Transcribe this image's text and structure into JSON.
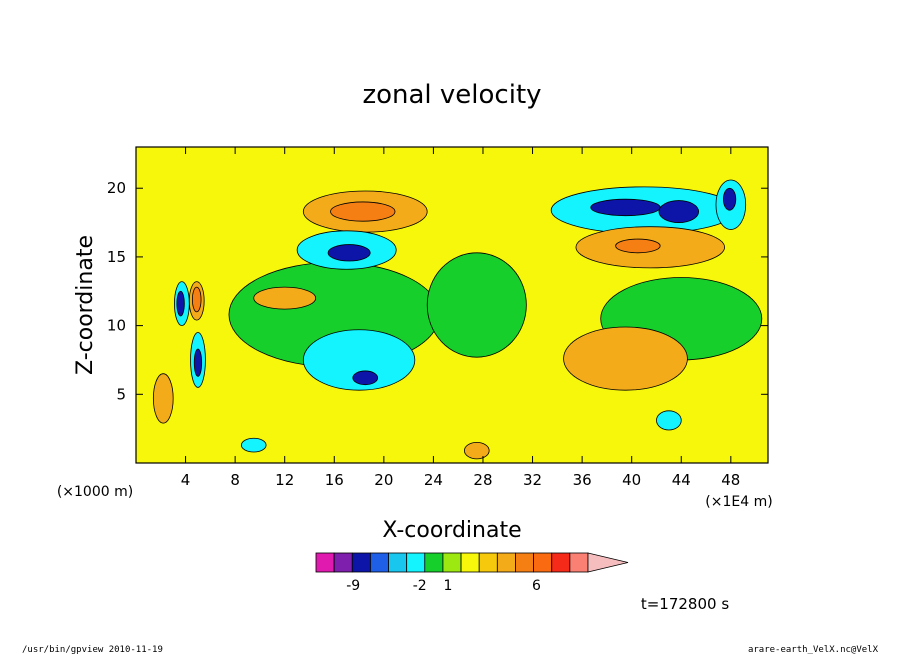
{
  "chart_data": {
    "type": "heatmap",
    "title": "zonal velocity",
    "xlabel": "X-coordinate",
    "ylabel": "Z-coordinate",
    "x_unit_left": "(×1000 m)",
    "x_unit_right": "(×1E4 m)",
    "x_range": [
      0,
      51
    ],
    "y_range": [
      0,
      23
    ],
    "x_ticks": [
      "4",
      "8",
      "12",
      "16",
      "20",
      "24",
      "28",
      "32",
      "36",
      "40",
      "44",
      "48"
    ],
    "x_tick_values": [
      4,
      8,
      12,
      16,
      20,
      24,
      28,
      32,
      36,
      40,
      44,
      48
    ],
    "y_ticks": [
      "5",
      "10",
      "15",
      "20"
    ],
    "y_tick_values": [
      5,
      10,
      15,
      20
    ],
    "colorbar": {
      "colors": [
        "#e11aaf",
        "#7e1fae",
        "#0c15a8",
        "#1f5ee6",
        "#18c6ee",
        "#13f4ff",
        "#16cf2b",
        "#9de811",
        "#f7f70c",
        "#f6c90c",
        "#f3ab1a",
        "#f57f13",
        "#fa6a10",
        "#f52a18",
        "#f98073",
        "#f6bdbf"
      ],
      "labels": [
        "-9",
        "-2",
        "1",
        "6"
      ],
      "label_slots": [
        1,
        5,
        7,
        10
      ]
    },
    "contour_regions": [
      {
        "fill": "#16cf2b",
        "cx": 16,
        "cy": 10.8,
        "rx": 8.5,
        "ry": 3.8
      },
      {
        "fill": "#16cf2b",
        "cx": 27.5,
        "cy": 11.5,
        "rx": 4,
        "ry": 3.8
      },
      {
        "fill": "#16cf2b",
        "cx": 44,
        "cy": 10.5,
        "rx": 6.5,
        "ry": 3
      },
      {
        "fill": "#13f4ff",
        "cx": 18,
        "cy": 7.5,
        "rx": 4.5,
        "ry": 2.2
      },
      {
        "fill": "#0c15a8",
        "cx": 18.5,
        "cy": 6.2,
        "rx": 1,
        "ry": 0.5
      },
      {
        "fill": "#f3ab1a",
        "cx": 39.5,
        "cy": 7.6,
        "rx": 5,
        "ry": 2.3
      },
      {
        "fill": "#f3ab1a",
        "cx": 18.5,
        "cy": 18.3,
        "rx": 5,
        "ry": 1.5
      },
      {
        "fill": "#f57f13",
        "cx": 18.3,
        "cy": 18.3,
        "rx": 2.6,
        "ry": 0.7
      },
      {
        "fill": "#13f4ff",
        "cx": 17,
        "cy": 15.5,
        "rx": 4,
        "ry": 1.4
      },
      {
        "fill": "#0c15a8",
        "cx": 17.2,
        "cy": 15.3,
        "rx": 1.7,
        "ry": 0.6
      },
      {
        "fill": "#13f4ff",
        "cx": 41,
        "cy": 18.4,
        "rx": 7.5,
        "ry": 1.7
      },
      {
        "fill": "#0c15a8",
        "cx": 39.5,
        "cy": 18.6,
        "rx": 2.8,
        "ry": 0.6
      },
      {
        "fill": "#0c15a8",
        "cx": 43.8,
        "cy": 18.3,
        "rx": 1.6,
        "ry": 0.8
      },
      {
        "fill": "#f3ab1a",
        "cx": 41.5,
        "cy": 15.7,
        "rx": 6,
        "ry": 1.5
      },
      {
        "fill": "#f57f13",
        "cx": 40.5,
        "cy": 15.8,
        "rx": 1.8,
        "ry": 0.5
      },
      {
        "fill": "#13f4ff",
        "cx": 3.7,
        "cy": 11.6,
        "rx": 0.6,
        "ry": 1.6
      },
      {
        "fill": "#0c15a8",
        "cx": 3.6,
        "cy": 11.6,
        "rx": 0.3,
        "ry": 0.9
      },
      {
        "fill": "#f3ab1a",
        "cx": 4.9,
        "cy": 11.8,
        "rx": 0.6,
        "ry": 1.4
      },
      {
        "fill": "#f57f13",
        "cx": 4.9,
        "cy": 11.9,
        "rx": 0.35,
        "ry": 0.9
      },
      {
        "fill": "#13f4ff",
        "cx": 5,
        "cy": 7.5,
        "rx": 0.6,
        "ry": 2
      },
      {
        "fill": "#0c15a8",
        "cx": 5,
        "cy": 7.3,
        "rx": 0.3,
        "ry": 1
      },
      {
        "fill": "#f3ab1a",
        "cx": 2.2,
        "cy": 4.7,
        "rx": 0.8,
        "ry": 1.8
      },
      {
        "fill": "#f3ab1a",
        "cx": 12,
        "cy": 12,
        "rx": 2.5,
        "ry": 0.8
      },
      {
        "fill": "#13f4ff",
        "cx": 48,
        "cy": 18.8,
        "rx": 1.2,
        "ry": 1.8
      },
      {
        "fill": "#0c15a8",
        "cx": 47.9,
        "cy": 19.2,
        "rx": 0.5,
        "ry": 0.8
      },
      {
        "fill": "#13f4ff",
        "cx": 43,
        "cy": 3.1,
        "rx": 1,
        "ry": 0.7
      },
      {
        "fill": "#13f4ff",
        "cx": 9.5,
        "cy": 1.3,
        "rx": 1,
        "ry": 0.5
      },
      {
        "fill": "#f3ab1a",
        "cx": 27.5,
        "cy": 0.9,
        "rx": 1,
        "ry": 0.6
      }
    ],
    "time_label": "t=172800 s"
  },
  "footer": {
    "left": "/usr/bin/gpview  2010-11-19",
    "right": "arare-earth_VelX.nc@VelX"
  }
}
